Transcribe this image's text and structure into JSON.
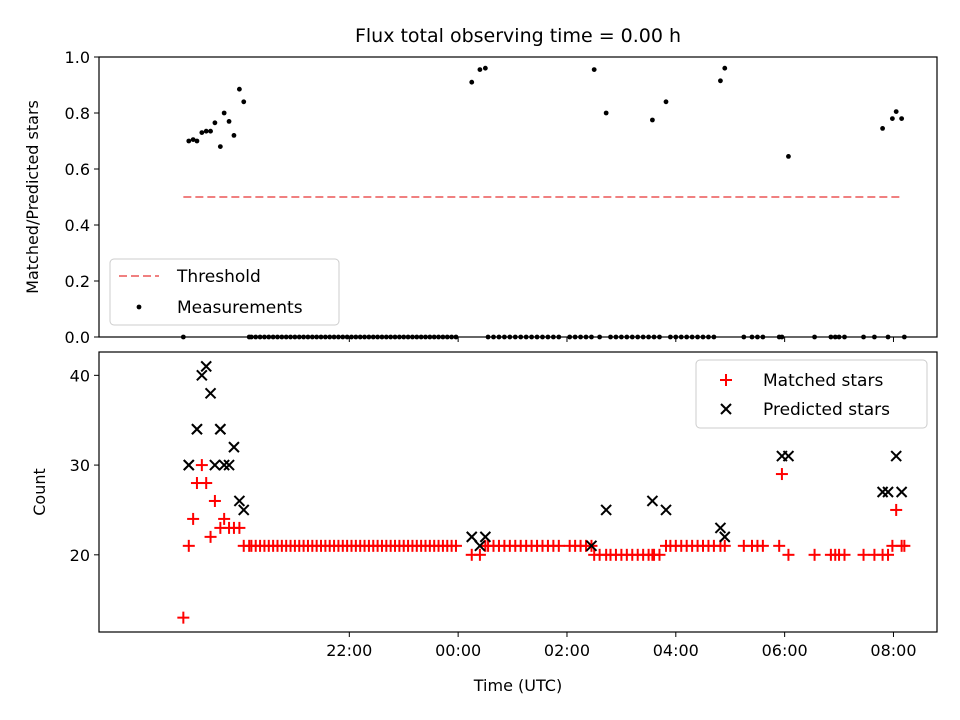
{
  "chart_data": [
    {
      "type": "scatter",
      "title": "Flux total observing time = 0.00 h",
      "xlabel": "",
      "ylabel": "Matched/Predicted stars",
      "x_unit": "hours since 00:00 UTC (negative = previous evening)",
      "xlim": [
        -6.6,
        8.8
      ],
      "ylim": [
        0.0,
        1.0
      ],
      "yticks": [
        0.0,
        0.2,
        0.4,
        0.6,
        0.8,
        1.0
      ],
      "ytick_labels": [
        "0.0",
        "0.2",
        "0.4",
        "0.6",
        "0.8",
        "1.0"
      ],
      "xticks": [
        -2,
        0,
        2,
        4,
        6,
        8
      ],
      "legend_position": "lower-left",
      "legend": [
        "Threshold",
        "Measurements"
      ],
      "threshold": {
        "name": "Threshold",
        "y": 0.5,
        "x_range": [
          -5.05,
          8.15
        ],
        "color": "#f08080"
      },
      "series": [
        {
          "name": "Measurements",
          "color": "#000000",
          "x": [
            -5.05,
            -4.95,
            -4.87,
            -4.8,
            -4.71,
            -4.63,
            -4.55,
            -4.47,
            -4.37,
            -4.3,
            -4.21,
            -4.12,
            -4.02,
            -3.94,
            -3.84,
            -3.8,
            -3.72,
            -3.64,
            -3.56,
            -3.48,
            -3.4,
            -3.32,
            -3.24,
            -3.16,
            -3.08,
            -3.0,
            -2.92,
            -2.84,
            -2.76,
            -2.68,
            -2.6,
            -2.52,
            -2.44,
            -2.36,
            -2.28,
            -2.2,
            -2.12,
            -2.04,
            -1.96,
            -1.88,
            -1.8,
            -1.72,
            -1.64,
            -1.56,
            -1.48,
            -1.4,
            -1.32,
            -1.24,
            -1.16,
            -1.08,
            -1.0,
            -0.92,
            -0.84,
            -0.76,
            -0.68,
            -0.6,
            -0.52,
            -0.44,
            -0.36,
            -0.28,
            -0.2,
            -0.12,
            -0.04,
            0.25,
            0.4,
            0.5,
            0.55,
            0.65,
            0.75,
            0.85,
            0.95,
            1.05,
            1.15,
            1.25,
            1.35,
            1.45,
            1.55,
            1.65,
            1.75,
            1.85,
            2.05,
            2.15,
            2.25,
            2.35,
            2.45,
            2.5,
            2.6,
            2.72,
            2.8,
            2.9,
            3.0,
            3.1,
            3.2,
            3.3,
            3.4,
            3.5,
            3.6,
            3.57,
            3.7,
            3.82,
            3.9,
            4.0,
            4.1,
            4.2,
            4.3,
            4.4,
            4.5,
            4.6,
            4.7,
            4.82,
            4.9,
            5.25,
            5.4,
            5.5,
            5.6,
            5.9,
            5.95,
            6.07,
            6.55,
            6.85,
            6.93,
            7.0,
            7.1,
            7.45,
            7.65,
            7.8,
            7.9,
            7.98,
            8.05,
            8.15,
            8.2
          ],
          "y": [
            0.0,
            0.7,
            0.705,
            0.7,
            0.73,
            0.735,
            0.735,
            0.765,
            0.68,
            0.8,
            0.77,
            0.72,
            0.885,
            0.84,
            0.0,
            0.0,
            0.0,
            0.0,
            0.0,
            0.0,
            0.0,
            0.0,
            0.0,
            0.0,
            0.0,
            0.0,
            0.0,
            0.0,
            0.0,
            0.0,
            0.0,
            0.0,
            0.0,
            0.0,
            0.0,
            0.0,
            0.0,
            0.0,
            0.0,
            0.0,
            0.0,
            0.0,
            0.0,
            0.0,
            0.0,
            0.0,
            0.0,
            0.0,
            0.0,
            0.0,
            0.0,
            0.0,
            0.0,
            0.0,
            0.0,
            0.0,
            0.0,
            0.0,
            0.0,
            0.0,
            0.0,
            0.0,
            0.0,
            0.91,
            0.955,
            0.96,
            0.0,
            0.0,
            0.0,
            0.0,
            0.0,
            0.0,
            0.0,
            0.0,
            0.0,
            0.0,
            0.0,
            0.0,
            0.0,
            0.0,
            0.0,
            0.0,
            0.0,
            0.0,
            0.0,
            0.955,
            0.0,
            0.8,
            0.0,
            0.0,
            0.0,
            0.0,
            0.0,
            0.0,
            0.0,
            0.0,
            0.0,
            0.775,
            0.0,
            0.84,
            0.0,
            0.0,
            0.0,
            0.0,
            0.0,
            0.0,
            0.0,
            0.0,
            0.0,
            0.915,
            0.96,
            0.0,
            0.0,
            0.0,
            0.0,
            0.0,
            0.0,
            0.645,
            0.0,
            0.0,
            0.0,
            0.0,
            0.0,
            0.0,
            0.0,
            0.745,
            0.0,
            0.78,
            0.805,
            0.78,
            0.0
          ]
        }
      ]
    },
    {
      "type": "scatter",
      "title": "",
      "xlabel": "Time (UTC)",
      "ylabel": "Count",
      "x_unit": "hours since 00:00 UTC (negative = previous evening)",
      "xlim": [
        -6.6,
        8.8
      ],
      "ylim": [
        11.4,
        42.6
      ],
      "yticks": [
        20,
        30,
        40
      ],
      "ytick_labels": [
        "20",
        "30",
        "40"
      ],
      "xticks": [
        -2,
        0,
        2,
        4,
        6,
        8
      ],
      "xtick_labels": [
        "22:00",
        "00:00",
        "02:00",
        "04:00",
        "06:00",
        "08:00"
      ],
      "legend_position": "upper-right",
      "legend": [
        "Matched stars",
        "Predicted stars"
      ],
      "series": [
        {
          "name": "Matched stars",
          "marker": "+",
          "color": "#ff0000",
          "x": [
            -5.05,
            -4.95,
            -4.87,
            -4.8,
            -4.71,
            -4.63,
            -4.55,
            -4.47,
            -4.37,
            -4.3,
            -4.21,
            -4.12,
            -4.02,
            -3.94,
            -3.84,
            -3.8,
            -3.72,
            -3.64,
            -3.56,
            -3.48,
            -3.4,
            -3.32,
            -3.24,
            -3.16,
            -3.08,
            -3.0,
            -2.92,
            -2.84,
            -2.76,
            -2.68,
            -2.6,
            -2.52,
            -2.44,
            -2.36,
            -2.28,
            -2.2,
            -2.12,
            -2.04,
            -1.96,
            -1.88,
            -1.8,
            -1.72,
            -1.64,
            -1.56,
            -1.48,
            -1.4,
            -1.32,
            -1.24,
            -1.16,
            -1.08,
            -1.0,
            -0.92,
            -0.84,
            -0.76,
            -0.68,
            -0.6,
            -0.52,
            -0.44,
            -0.36,
            -0.28,
            -0.2,
            -0.12,
            -0.04,
            0.25,
            0.4,
            0.5,
            0.55,
            0.65,
            0.75,
            0.85,
            0.95,
            1.05,
            1.15,
            1.25,
            1.35,
            1.45,
            1.55,
            1.65,
            1.75,
            1.85,
            2.05,
            2.15,
            2.25,
            2.35,
            2.45,
            2.5,
            2.6,
            2.72,
            2.8,
            2.9,
            3.0,
            3.1,
            3.2,
            3.3,
            3.4,
            3.5,
            3.6,
            3.57,
            3.7,
            3.82,
            3.9,
            4.0,
            4.1,
            4.2,
            4.3,
            4.4,
            4.5,
            4.6,
            4.7,
            4.82,
            4.9,
            5.25,
            5.4,
            5.5,
            5.6,
            5.9,
            5.95,
            6.07,
            6.55,
            6.85,
            6.93,
            7.0,
            7.1,
            7.45,
            7.65,
            7.8,
            7.9,
            7.98,
            8.05,
            8.15,
            8.2
          ],
          "y": [
            13,
            21,
            24,
            28,
            30,
            28,
            22,
            26,
            23,
            24,
            23,
            23,
            23,
            21,
            21,
            21,
            21,
            21,
            21,
            21,
            21,
            21,
            21,
            21,
            21,
            21,
            21,
            21,
            21,
            21,
            21,
            21,
            21,
            21,
            21,
            21,
            21,
            21,
            21,
            21,
            21,
            21,
            21,
            21,
            21,
            21,
            21,
            21,
            21,
            21,
            21,
            21,
            21,
            21,
            21,
            21,
            21,
            21,
            21,
            21,
            21,
            21,
            21,
            20,
            20,
            21,
            21,
            21,
            21,
            21,
            21,
            21,
            21,
            21,
            21,
            21,
            21,
            21,
            21,
            21,
            21,
            21,
            21,
            21,
            21,
            20,
            20,
            20,
            20,
            20,
            20,
            20,
            20,
            20,
            20,
            20,
            20,
            20,
            20,
            21,
            21,
            21,
            21,
            21,
            21,
            21,
            21,
            21,
            21,
            21,
            21,
            21,
            21,
            21,
            21,
            21,
            29,
            20,
            20,
            20,
            20,
            20,
            20,
            20,
            20,
            20,
            20,
            21,
            25,
            21,
            21
          ]
        },
        {
          "name": "Predicted stars",
          "marker": "x",
          "color": "#000000",
          "x": [
            -4.95,
            -4.8,
            -4.71,
            -4.63,
            -4.55,
            -4.47,
            -4.3,
            -4.21,
            -4.37,
            -4.12,
            -4.02,
            -3.94,
            -4.37,
            -4.8,
            -4.95,
            0.25,
            0.4,
            0.5,
            2.45,
            2.72,
            3.57,
            3.82,
            4.82,
            4.9,
            5.95,
            6.07,
            7.8,
            7.9,
            8.05,
            8.15
          ],
          "y": [
            30,
            34,
            40,
            41,
            38,
            30,
            30,
            30,
            34,
            32,
            26,
            25,
            34,
            34,
            30,
            22,
            21,
            22,
            21,
            25,
            26,
            25,
            23,
            22,
            31,
            31,
            27,
            27,
            31,
            27
          ]
        }
      ]
    }
  ]
}
